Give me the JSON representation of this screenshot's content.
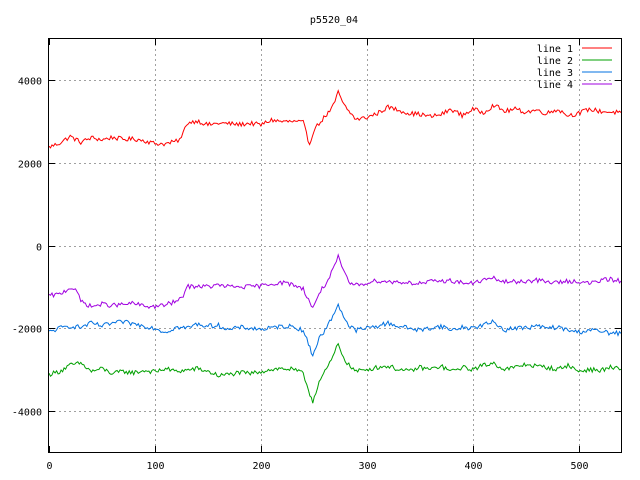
{
  "chart_data": {
    "type": "line",
    "title": "p5520_04",
    "xlabel": "",
    "ylabel": "",
    "xlim": [
      0,
      540
    ],
    "ylim": [
      -5000,
      5000
    ],
    "x_ticks": [
      0,
      100,
      200,
      300,
      400,
      500
    ],
    "y_ticks": [
      -4000,
      -2000,
      0,
      2000,
      4000
    ],
    "grid": true,
    "legend_position": "top-right",
    "series": [
      {
        "name": "line 1",
        "color": "#ff0000",
        "points": [
          [
            0,
            2380
          ],
          [
            10,
            2480
          ],
          [
            20,
            2640
          ],
          [
            30,
            2500
          ],
          [
            40,
            2610
          ],
          [
            50,
            2560
          ],
          [
            60,
            2620
          ],
          [
            70,
            2570
          ],
          [
            80,
            2580
          ],
          [
            90,
            2540
          ],
          [
            100,
            2470
          ],
          [
            110,
            2460
          ],
          [
            120,
            2520
          ],
          [
            125,
            2600
          ],
          [
            130,
            2960
          ],
          [
            140,
            3020
          ],
          [
            150,
            2920
          ],
          [
            160,
            2960
          ],
          [
            170,
            2950
          ],
          [
            180,
            2930
          ],
          [
            190,
            2960
          ],
          [
            200,
            2920
          ],
          [
            210,
            3040
          ],
          [
            220,
            3000
          ],
          [
            230,
            3000
          ],
          [
            240,
            2980
          ],
          [
            243,
            2700
          ],
          [
            246,
            2450
          ],
          [
            250,
            2800
          ],
          [
            258,
            3050
          ],
          [
            265,
            3250
          ],
          [
            270,
            3450
          ],
          [
            273,
            3750
          ],
          [
            277,
            3450
          ],
          [
            283,
            3250
          ],
          [
            290,
            3050
          ],
          [
            300,
            3100
          ],
          [
            310,
            3200
          ],
          [
            320,
            3350
          ],
          [
            330,
            3280
          ],
          [
            340,
            3200
          ],
          [
            350,
            3180
          ],
          [
            360,
            3120
          ],
          [
            370,
            3170
          ],
          [
            380,
            3300
          ],
          [
            390,
            3150
          ],
          [
            400,
            3300
          ],
          [
            410,
            3220
          ],
          [
            420,
            3400
          ],
          [
            430,
            3250
          ],
          [
            440,
            3300
          ],
          [
            450,
            3230
          ],
          [
            460,
            3280
          ],
          [
            470,
            3200
          ],
          [
            480,
            3300
          ],
          [
            490,
            3150
          ],
          [
            500,
            3200
          ],
          [
            510,
            3300
          ],
          [
            520,
            3250
          ],
          [
            530,
            3230
          ],
          [
            540,
            3220
          ]
        ]
      },
      {
        "name": "line 2",
        "color": "#00a000",
        "points": [
          [
            0,
            -3120
          ],
          [
            10,
            -3050
          ],
          [
            20,
            -2900
          ],
          [
            30,
            -2850
          ],
          [
            40,
            -3050
          ],
          [
            50,
            -2980
          ],
          [
            60,
            -3100
          ],
          [
            70,
            -3050
          ],
          [
            80,
            -3080
          ],
          [
            90,
            -3030
          ],
          [
            100,
            -3060
          ],
          [
            110,
            -2980
          ],
          [
            120,
            -3050
          ],
          [
            130,
            -3020
          ],
          [
            140,
            -2980
          ],
          [
            150,
            -3050
          ],
          [
            160,
            -3150
          ],
          [
            170,
            -3120
          ],
          [
            180,
            -3080
          ],
          [
            190,
            -3100
          ],
          [
            200,
            -3050
          ],
          [
            210,
            -3000
          ],
          [
            220,
            -2980
          ],
          [
            230,
            -3000
          ],
          [
            240,
            -3100
          ],
          [
            245,
            -3500
          ],
          [
            249,
            -3780
          ],
          [
            255,
            -3300
          ],
          [
            262,
            -3000
          ],
          [
            268,
            -2700
          ],
          [
            273,
            -2380
          ],
          [
            278,
            -2700
          ],
          [
            283,
            -2900
          ],
          [
            290,
            -3050
          ],
          [
            300,
            -3000
          ],
          [
            310,
            -2950
          ],
          [
            320,
            -2920
          ],
          [
            330,
            -3000
          ],
          [
            340,
            -3050
          ],
          [
            350,
            -2950
          ],
          [
            360,
            -3000
          ],
          [
            370,
            -2920
          ],
          [
            380,
            -3050
          ],
          [
            390,
            -2950
          ],
          [
            400,
            -3000
          ],
          [
            410,
            -2900
          ],
          [
            420,
            -2850
          ],
          [
            430,
            -3000
          ],
          [
            440,
            -2950
          ],
          [
            450,
            -2880
          ],
          [
            460,
            -2920
          ],
          [
            470,
            -2950
          ],
          [
            480,
            -3000
          ],
          [
            490,
            -2900
          ],
          [
            500,
            -3050
          ],
          [
            510,
            -3000
          ],
          [
            520,
            -3030
          ],
          [
            530,
            -2950
          ],
          [
            540,
            -3000
          ]
        ]
      },
      {
        "name": "line 3",
        "color": "#0070e0",
        "points": [
          [
            0,
            -2100
          ],
          [
            10,
            -2000
          ],
          [
            20,
            -1950
          ],
          [
            30,
            -1980
          ],
          [
            40,
            -1880
          ],
          [
            50,
            -1950
          ],
          [
            60,
            -1880
          ],
          [
            70,
            -1850
          ],
          [
            80,
            -1900
          ],
          [
            90,
            -1950
          ],
          [
            100,
            -2000
          ],
          [
            110,
            -2100
          ],
          [
            120,
            -1980
          ],
          [
            130,
            -2000
          ],
          [
            140,
            -1900
          ],
          [
            150,
            -1950
          ],
          [
            160,
            -1930
          ],
          [
            170,
            -2050
          ],
          [
            180,
            -1980
          ],
          [
            190,
            -2000
          ],
          [
            200,
            -2030
          ],
          [
            210,
            -2000
          ],
          [
            220,
            -1950
          ],
          [
            230,
            -1960
          ],
          [
            240,
            -2050
          ],
          [
            245,
            -2400
          ],
          [
            249,
            -2650
          ],
          [
            255,
            -2250
          ],
          [
            262,
            -2000
          ],
          [
            268,
            -1700
          ],
          [
            273,
            -1420
          ],
          [
            278,
            -1700
          ],
          [
            283,
            -1950
          ],
          [
            290,
            -2050
          ],
          [
            300,
            -2000
          ],
          [
            310,
            -1950
          ],
          [
            320,
            -1880
          ],
          [
            330,
            -1950
          ],
          [
            340,
            -2000
          ],
          [
            350,
            -2050
          ],
          [
            360,
            -2000
          ],
          [
            370,
            -1950
          ],
          [
            380,
            -2050
          ],
          [
            390,
            -1980
          ],
          [
            400,
            -2000
          ],
          [
            410,
            -1920
          ],
          [
            420,
            -1850
          ],
          [
            430,
            -2050
          ],
          [
            440,
            -1990
          ],
          [
            450,
            -2000
          ],
          [
            460,
            -1950
          ],
          [
            470,
            -2000
          ],
          [
            480,
            -1980
          ],
          [
            490,
            -2050
          ],
          [
            500,
            -2100
          ],
          [
            510,
            -2040
          ],
          [
            520,
            -2080
          ],
          [
            530,
            -2120
          ],
          [
            540,
            -2130
          ]
        ]
      },
      {
        "name": "line 4",
        "color": "#a000e0",
        "points": [
          [
            0,
            -1220
          ],
          [
            10,
            -1180
          ],
          [
            20,
            -1020
          ],
          [
            25,
            -1050
          ],
          [
            30,
            -1350
          ],
          [
            40,
            -1480
          ],
          [
            50,
            -1420
          ],
          [
            60,
            -1450
          ],
          [
            70,
            -1430
          ],
          [
            80,
            -1400
          ],
          [
            90,
            -1470
          ],
          [
            100,
            -1480
          ],
          [
            110,
            -1440
          ],
          [
            120,
            -1350
          ],
          [
            125,
            -1300
          ],
          [
            130,
            -1000
          ],
          [
            140,
            -980
          ],
          [
            150,
            -1000
          ],
          [
            160,
            -960
          ],
          [
            170,
            -1000
          ],
          [
            180,
            -1000
          ],
          [
            190,
            -1000
          ],
          [
            200,
            -980
          ],
          [
            210,
            -920
          ],
          [
            220,
            -900
          ],
          [
            230,
            -940
          ],
          [
            240,
            -1050
          ],
          [
            245,
            -1300
          ],
          [
            249,
            -1530
          ],
          [
            255,
            -1150
          ],
          [
            262,
            -900
          ],
          [
            268,
            -600
          ],
          [
            273,
            -280
          ],
          [
            278,
            -620
          ],
          [
            283,
            -900
          ],
          [
            290,
            -960
          ],
          [
            300,
            -900
          ],
          [
            310,
            -850
          ],
          [
            320,
            -880
          ],
          [
            330,
            -880
          ],
          [
            340,
            -900
          ],
          [
            350,
            -920
          ],
          [
            360,
            -880
          ],
          [
            370,
            -860
          ],
          [
            380,
            -850
          ],
          [
            390,
            -900
          ],
          [
            400,
            -920
          ],
          [
            410,
            -830
          ],
          [
            420,
            -800
          ],
          [
            430,
            -880
          ],
          [
            440,
            -880
          ],
          [
            450,
            -860
          ],
          [
            460,
            -840
          ],
          [
            470,
            -880
          ],
          [
            480,
            -900
          ],
          [
            490,
            -860
          ],
          [
            500,
            -870
          ],
          [
            510,
            -920
          ],
          [
            520,
            -850
          ],
          [
            530,
            -820
          ],
          [
            540,
            -860
          ]
        ]
      }
    ]
  }
}
